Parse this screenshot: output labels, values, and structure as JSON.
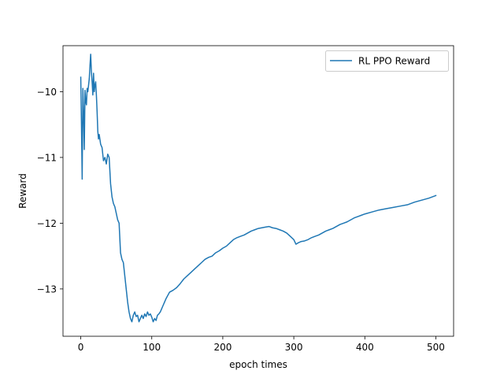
{
  "chart_data": {
    "type": "line",
    "title": "",
    "xlabel": "epoch times",
    "ylabel": "Reward",
    "xlim": [
      -25,
      525
    ],
    "ylim": [
      -13.72,
      -9.3
    ],
    "xticks": [
      0,
      100,
      200,
      300,
      400,
      500
    ],
    "yticks": [
      -10,
      -11,
      -12,
      -13
    ],
    "tick_labels_x": [
      "0",
      "100",
      "200",
      "300",
      "400",
      "500"
    ],
    "tick_labels_y": [
      "−10",
      "−11",
      "−12",
      "−13"
    ],
    "grid": false,
    "legend": {
      "position": "top-right",
      "entries": [
        "RL PPO Reward"
      ]
    },
    "series": [
      {
        "name": "RL PPO Reward",
        "color": "#1f77b4",
        "x": [
          0,
          1,
          2,
          3,
          4,
          5,
          6,
          7,
          8,
          9,
          10,
          12,
          13,
          14,
          15,
          16,
          17,
          18,
          19,
          20,
          21,
          22,
          23,
          24,
          25,
          26,
          28,
          30,
          32,
          34,
          36,
          38,
          40,
          42,
          44,
          46,
          48,
          50,
          52,
          54,
          56,
          58,
          60,
          62,
          64,
          66,
          68,
          70,
          72,
          74,
          76,
          78,
          80,
          82,
          84,
          86,
          88,
          90,
          92,
          94,
          96,
          98,
          100,
          102,
          104,
          106,
          108,
          110,
          112,
          114,
          116,
          118,
          120,
          125,
          130,
          135,
          140,
          145,
          150,
          155,
          160,
          165,
          170,
          175,
          180,
          185,
          190,
          195,
          200,
          205,
          210,
          215,
          220,
          225,
          230,
          235,
          240,
          245,
          250,
          255,
          260,
          265,
          270,
          275,
          280,
          285,
          290,
          295,
          300,
          303,
          306,
          310,
          315,
          320,
          325,
          330,
          335,
          340,
          345,
          350,
          355,
          360,
          365,
          370,
          375,
          380,
          385,
          390,
          395,
          400,
          410,
          420,
          430,
          440,
          450,
          460,
          470,
          480,
          490,
          500
        ],
        "y": [
          -9.78,
          -10.5,
          -11.33,
          -9.95,
          -10.3,
          -10.88,
          -9.98,
          -10.15,
          -10.2,
          -9.95,
          -10.0,
          -9.8,
          -9.6,
          -9.43,
          -9.7,
          -9.85,
          -10.05,
          -9.72,
          -10.0,
          -9.9,
          -9.85,
          -10.05,
          -10.3,
          -10.6,
          -10.72,
          -10.65,
          -10.8,
          -10.85,
          -11.05,
          -11.0,
          -11.1,
          -10.95,
          -11.0,
          -11.4,
          -11.6,
          -11.7,
          -11.75,
          -11.85,
          -11.95,
          -12.0,
          -12.45,
          -12.55,
          -12.6,
          -12.8,
          -13.0,
          -13.2,
          -13.35,
          -13.45,
          -13.5,
          -13.4,
          -13.35,
          -13.42,
          -13.4,
          -13.5,
          -13.45,
          -13.4,
          -13.45,
          -13.38,
          -13.42,
          -13.35,
          -13.4,
          -13.38,
          -13.43,
          -13.5,
          -13.45,
          -13.48,
          -13.4,
          -13.38,
          -13.35,
          -13.3,
          -13.25,
          -13.2,
          -13.15,
          -13.05,
          -13.02,
          -12.98,
          -12.92,
          -12.85,
          -12.8,
          -12.75,
          -12.7,
          -12.65,
          -12.6,
          -12.55,
          -12.52,
          -12.5,
          -12.45,
          -12.42,
          -12.38,
          -12.35,
          -12.3,
          -12.25,
          -12.22,
          -12.2,
          -12.18,
          -12.15,
          -12.12,
          -12.1,
          -12.08,
          -12.07,
          -12.06,
          -12.05,
          -12.07,
          -12.08,
          -12.1,
          -12.12,
          -12.15,
          -12.2,
          -12.25,
          -12.32,
          -12.3,
          -12.28,
          -12.27,
          -12.25,
          -12.22,
          -12.2,
          -12.18,
          -12.15,
          -12.12,
          -12.1,
          -12.08,
          -12.05,
          -12.02,
          -12.0,
          -11.98,
          -11.95,
          -11.92,
          -11.9,
          -11.88,
          -11.86,
          -11.83,
          -11.8,
          -11.78,
          -11.76,
          -11.74,
          -11.72,
          -11.68,
          -11.65,
          -11.62,
          -11.58
        ]
      }
    ]
  }
}
